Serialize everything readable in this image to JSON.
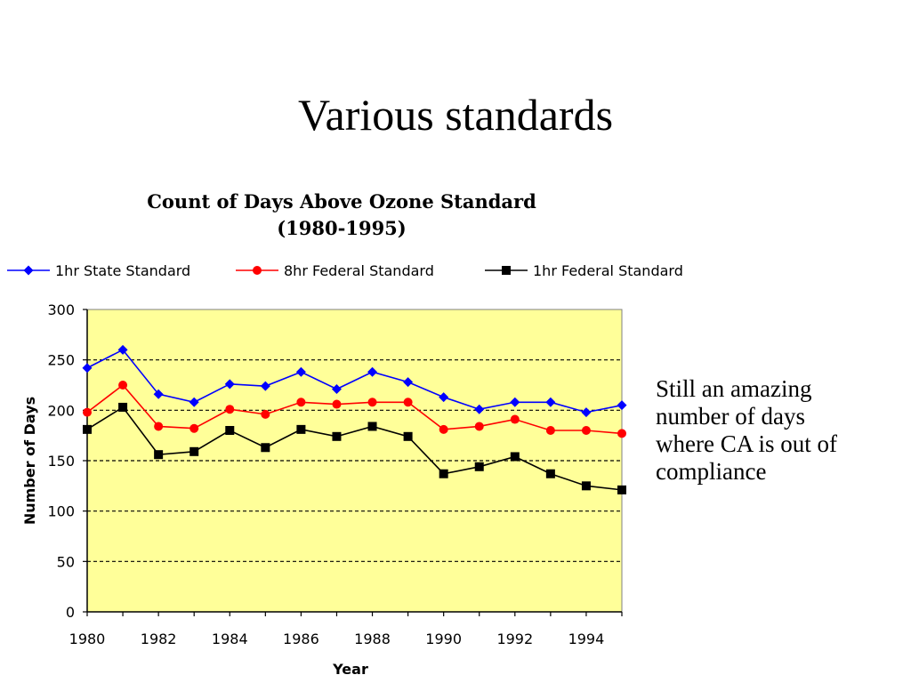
{
  "slide": {
    "title": "Various standards",
    "note_lines": [
      "Still an amazing",
      "number of days",
      "where CA is out of",
      "compliance"
    ]
  },
  "chart_data": {
    "type": "line",
    "title": "Count of Days Above Ozone Standard",
    "subtitle": "(1980-1995)",
    "xlabel": "Year",
    "ylabel": "Number of Days",
    "x": [
      1980,
      1981,
      1982,
      1983,
      1984,
      1985,
      1986,
      1987,
      1988,
      1989,
      1990,
      1991,
      1992,
      1993,
      1994,
      1995
    ],
    "xticks": [
      1980,
      1982,
      1984,
      1986,
      1988,
      1990,
      1992,
      1994
    ],
    "yticks": [
      0,
      50,
      100,
      150,
      200,
      250,
      300
    ],
    "xlim": [
      1980,
      1995
    ],
    "ylim": [
      0,
      300
    ],
    "grid": "horizontal dashed",
    "legend": "top",
    "plot_background": "#ffff99",
    "series": [
      {
        "name": "1hr State Standard",
        "color": "#0000ff",
        "marker": "diamond",
        "values": [
          242,
          260,
          216,
          208,
          226,
          224,
          238,
          221,
          238,
          228,
          213,
          201,
          208,
          208,
          198,
          205
        ]
      },
      {
        "name": "8hr Federal Standard",
        "color": "#ff0000",
        "marker": "circle",
        "values": [
          198,
          225,
          184,
          182,
          201,
          196,
          208,
          206,
          208,
          208,
          181,
          184,
          191,
          180,
          180,
          177
        ]
      },
      {
        "name": "1hr Federal Standard",
        "color": "#000000",
        "marker": "square",
        "values": [
          181,
          203,
          156,
          159,
          180,
          163,
          181,
          174,
          184,
          174,
          137,
          144,
          154,
          137,
          125,
          121
        ]
      }
    ]
  }
}
